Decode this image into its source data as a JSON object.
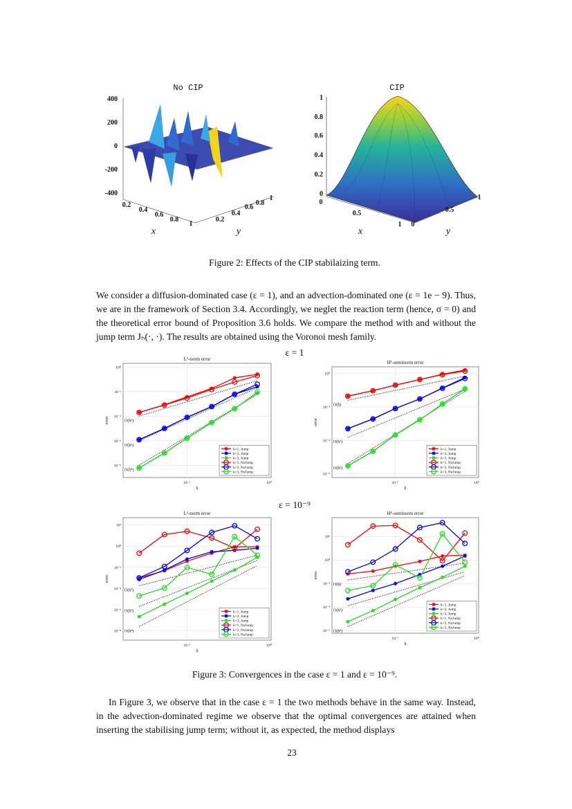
{
  "figure_2": {
    "panels": [
      {
        "title": "No CIP",
        "z_ticks": [
          400,
          200,
          0,
          -200,
          -400
        ],
        "x_ticks": [
          0.2,
          0.4,
          0.6,
          0.8,
          1
        ],
        "y_ticks": [
          0.2,
          0.4,
          0.6,
          0.8,
          1
        ],
        "x_label": "x",
        "y_label": "y"
      },
      {
        "title": "CIP",
        "z_ticks": [
          1,
          0.8,
          0.6,
          0.4,
          0.2,
          0
        ],
        "x_ticks": [
          0,
          0.5,
          1
        ],
        "y_ticks": [
          0,
          0.5,
          1
        ],
        "x_label": "x",
        "y_label": "y"
      }
    ],
    "caption": "Figure 2: Effects of the CIP stabilaizing term."
  },
  "paragraph_1": "We consider a diffusion-dominated case (ε = 1), and an advection-dominated one (ε = 1e − 9). Thus, we are in the framework of Section 3.4. Accordingly, we neglet the reaction term (hence, σ = 0) and the theoretical error bound of Proposition 3.6 holds. We compare the method with and without the jump term Jₕ(·, ·). The results are obtained using the Voronoi mesh family.",
  "figure_3": {
    "headers": [
      "ε = 1",
      "ε = 10⁻⁹"
    ],
    "caption": "Figure 3: Convergences in the case ε = 1 and ε = 10⁻⁹."
  },
  "chart_data": [
    {
      "type": "line",
      "title": "L²-norm error",
      "xlabel": "h",
      "ylabel": "error",
      "log_x": true,
      "log_y": true,
      "grid": true,
      "legend": "lower right",
      "x": [
        0.026,
        0.053,
        0.1,
        0.2,
        0.38,
        0.72
      ],
      "xlim": [
        0.0166,
        1.06
      ],
      "ylim": [
        1e-09,
        2
      ],
      "xticks": [
        {
          "value": 0.1,
          "label": "10⁻¹"
        },
        {
          "value": 1,
          "label": "10⁰"
        }
      ],
      "yticks": [
        {
          "value": 1,
          "label": "10⁰"
        },
        {
          "value": 0.01,
          "label": "10⁻²"
        },
        {
          "value": 0.0001,
          "label": "10⁻⁴"
        },
        {
          "value": 1e-06,
          "label": "10⁻⁶"
        },
        {
          "value": 1e-08,
          "label": "10⁻⁸"
        }
      ],
      "series": [
        {
          "name": "k=1, Jump",
          "color": "#ff0000",
          "marker": "*",
          "values": [
            0.0002,
            0.00085,
            0.0037,
            0.018,
            0.13,
            0.26
          ]
        },
        {
          "name": "k=2, Jump",
          "color": "#0000ff",
          "marker": "*",
          "values": [
            1.2e-06,
            1e-05,
            8e-05,
            0.0006,
            0.006,
            0.025
          ]
        },
        {
          "name": "k=3, Jump",
          "color": "#22dd22",
          "marker": "*",
          "values": [
            6e-09,
            1e-07,
            1.6e-06,
            3e-05,
            0.0004,
            0.008
          ]
        },
        {
          "name": "k=1, NoJump",
          "color": "#ff0000",
          "marker": "o",
          "values": [
            0.0002,
            0.0008,
            0.003,
            0.015,
            0.06,
            0.2
          ]
        },
        {
          "name": "k=2, NoJump",
          "color": "#0000ff",
          "marker": "o",
          "values": [
            1.2e-06,
            1e-05,
            8e-05,
            0.0006,
            0.006,
            0.04
          ]
        },
        {
          "name": "k=3, NoJump",
          "color": "#22dd22",
          "marker": "o",
          "values": [
            6e-09,
            1e-07,
            1.6e-06,
            3e-05,
            0.0004,
            0.009
          ]
        }
      ],
      "reference_lines": [
        {
          "label": "O(h²)",
          "x": [
            0.026,
            0.72
          ],
          "values": [
            0.0001,
            0.077
          ]
        },
        {
          "label": "O(h³)",
          "x": [
            0.026,
            0.72
          ],
          "values": [
            1e-06,
            0.021
          ]
        },
        {
          "label": "O(h⁴)",
          "x": [
            0.026,
            0.72
          ],
          "values": [
            1e-08,
            0.0059
          ]
        }
      ]
    },
    {
      "type": "line",
      "title": "H¹-seminorm error",
      "xlabel": "h",
      "ylabel": "error",
      "log_x": true,
      "log_y": true,
      "grid": true,
      "legend": "lower right",
      "x": [
        0.026,
        0.053,
        0.1,
        0.2,
        0.38,
        0.72
      ],
      "xlim": [
        0.0166,
        1.06
      ],
      "ylim": [
        6e-07,
        2.5
      ],
      "xticks": [
        {
          "value": 0.1,
          "label": "10⁻¹"
        },
        {
          "value": 1,
          "label": "10⁰"
        }
      ],
      "yticks": [
        {
          "value": 1,
          "label": "10⁰"
        },
        {
          "value": 0.01,
          "label": "10⁻²"
        },
        {
          "value": 0.0001,
          "label": "10⁻⁴"
        },
        {
          "value": 1e-06,
          "label": "10⁻⁶"
        }
      ],
      "series": [
        {
          "name": "k=1, Jump",
          "color": "#ff0000",
          "marker": "*",
          "values": [
            0.044,
            0.093,
            0.2,
            0.43,
            0.9,
            1.6
          ]
        },
        {
          "name": "k=2, Jump",
          "color": "#0000ff",
          "marker": "*",
          "values": [
            0.0005,
            0.0019,
            0.008,
            0.03,
            0.135,
            0.56
          ]
        },
        {
          "name": "k=3, Jump",
          "color": "#22dd22",
          "marker": "*",
          "values": [
            3e-06,
            2.2e-05,
            0.00021,
            0.0017,
            0.015,
            0.12
          ]
        },
        {
          "name": "k=1, NoJump",
          "color": "#ff0000",
          "marker": "o",
          "values": [
            0.044,
            0.093,
            0.2,
            0.43,
            0.85,
            1.4
          ]
        },
        {
          "name": "k=2, NoJump",
          "color": "#0000ff",
          "marker": "o",
          "values": [
            0.0005,
            0.0019,
            0.008,
            0.03,
            0.13,
            0.5
          ]
        },
        {
          "name": "k=3, NoJump",
          "color": "#22dd22",
          "marker": "o",
          "values": [
            3e-06,
            2.2e-05,
            0.00021,
            0.0017,
            0.015,
            0.12
          ]
        }
      ],
      "reference_lines": [
        {
          "label": "O(h)",
          "x": [
            0.026,
            0.72
          ],
          "values": [
            0.025,
            0.69
          ]
        },
        {
          "label": "O(h²)",
          "x": [
            0.026,
            0.72
          ],
          "values": [
            0.00015,
            0.115
          ]
        },
        {
          "label": "O(h³)",
          "x": [
            0.026,
            0.72
          ],
          "values": [
            4e-06,
            0.085
          ]
        }
      ]
    },
    {
      "type": "line",
      "title": "L²-norm error",
      "xlabel": "h",
      "ylabel": "error",
      "log_x": true,
      "log_y": true,
      "grid": true,
      "legend": "lower right",
      "x": [
        0.026,
        0.053,
        0.1,
        0.2,
        0.38,
        0.72
      ],
      "xlim": [
        0.0166,
        1.06
      ],
      "ylim": [
        1.3e-09,
        500
      ],
      "xticks": [
        {
          "value": 0.1,
          "label": "10⁻¹"
        },
        {
          "value": 1,
          "label": "10⁰"
        }
      ],
      "yticks": [
        {
          "value": 100,
          "label": "10²"
        },
        {
          "value": 1,
          "label": "10⁰"
        },
        {
          "value": 0.01,
          "label": "10⁻²"
        },
        {
          "value": 0.0001,
          "label": "10⁻⁴"
        },
        {
          "value": 1e-06,
          "label": "10⁻⁶"
        },
        {
          "value": 1e-08,
          "label": "10⁻⁸"
        }
      ],
      "series": [
        {
          "name": "k=1, Jump",
          "color": "#ff0000",
          "marker": "*",
          "values": [
            0.001,
            0.0048,
            0.038,
            0.22,
            0.87,
            0.87
          ]
        },
        {
          "name": "k=2, Jump",
          "color": "#0000ff",
          "marker": "*",
          "values": [
            0.0007,
            0.0055,
            0.06,
            0.3,
            0.4,
            0.65
          ]
        },
        {
          "name": "k=3, Jump",
          "color": "#22dd22",
          "marker": "*",
          "values": [
            2.2e-07,
            3.3e-06,
            3.5e-05,
            0.0005,
            0.0055,
            0.09
          ]
        },
        {
          "name": "k=1, NoJump",
          "color": "#ff0000",
          "marker": "o",
          "values": [
            0.22,
            12.6,
            26,
            6,
            0.65,
            40
          ]
        },
        {
          "name": "k=2, NoJump",
          "color": "#0000ff",
          "marker": "o",
          "values": [
            0.001,
            0.012,
            0.4,
            20,
            86,
            5
          ]
        },
        {
          "name": "k=3, NoJump",
          "color": "#22dd22",
          "marker": "o",
          "values": [
            2e-05,
            0.00011,
            0.01,
            0.0022,
            8,
            0.14
          ]
        }
      ],
      "reference_lines": [
        {
          "label": "O(h²)",
          "x": [
            0.026,
            0.72
          ],
          "values": [
            0.00018,
            0.14
          ]
        },
        {
          "label": "O(h³)",
          "x": [
            0.026,
            0.72
          ],
          "values": [
            2e-06,
            0.044
          ]
        },
        {
          "label": "O(h⁴)",
          "x": [
            0.026,
            0.72
          ],
          "values": [
            2.5e-08,
            0.015
          ]
        }
      ]
    },
    {
      "type": "line",
      "title": "H¹-seminorm error",
      "xlabel": "h",
      "ylabel": "error",
      "log_x": true,
      "log_y": true,
      "grid": true,
      "legend": "lower right",
      "x": [
        0.026,
        0.053,
        0.1,
        0.2,
        0.38,
        0.72
      ],
      "xlim": [
        0.0166,
        1.06
      ],
      "ylim": [
        6e-07,
        4000
      ],
      "xticks": [
        {
          "value": 0.1,
          "label": "10⁻¹"
        },
        {
          "value": 1,
          "label": "10⁰"
        }
      ],
      "yticks": [
        {
          "value": 100,
          "label": "10²"
        },
        {
          "value": 1,
          "label": "10⁰"
        },
        {
          "value": 0.01,
          "label": "10⁻²"
        },
        {
          "value": 0.0001,
          "label": "10⁻⁴"
        },
        {
          "value": 1e-06,
          "label": "10⁻⁶"
        }
      ],
      "series": [
        {
          "name": "k=1, Jump",
          "color": "#ff0000",
          "marker": "*",
          "values": [
            0.066,
            0.115,
            0.3,
            0.76,
            2.2,
            2.6
          ]
        },
        {
          "name": "k=2, Jump",
          "color": "#0000ff",
          "marker": "*",
          "values": [
            0.0005,
            0.0026,
            0.01,
            0.058,
            0.3,
            2.2
          ]
        },
        {
          "name": "k=3, Jump",
          "color": "#22dd22",
          "marker": "*",
          "values": [
            5.8e-06,
            5e-05,
            0.00045,
            0.0045,
            0.034,
            0.3
          ]
        },
        {
          "name": "k=1, NoJump",
          "color": "#ff0000",
          "marker": "o",
          "values": [
            20,
            760,
            870,
            51,
            0.87,
            195
          ]
        },
        {
          "name": "k=2, NoJump",
          "color": "#0000ff",
          "marker": "o",
          "values": [
            0.1,
            0.66,
            8.7,
            580,
            1500,
            26
          ]
        },
        {
          "name": "k=3, NoJump",
          "color": "#22dd22",
          "marker": "o",
          "values": [
            0.0026,
            0.0066,
            0.39,
            0.03,
            170,
            0.66
          ]
        }
      ],
      "reference_lines": [
        {
          "label": "O(h)",
          "x": [
            0.026,
            0.72
          ],
          "values": [
            0.02,
            0.55
          ]
        },
        {
          "label": "O(h²)",
          "x": [
            0.026,
            0.72
          ],
          "values": [
            0.00013,
            0.1
          ]
        },
        {
          "label": "O(h³)",
          "x": [
            0.026,
            0.72
          ],
          "values": [
            2.2e-06,
            0.047
          ]
        }
      ]
    }
  ],
  "paragraph_2": "In Figure 3, we observe that in the case ε = 1 the two methods behave in the same way. Instead, in the advection-dominated regime we observe that the optimal convergences are at­tained when inserting the stabilising jump term; without it, as expected, the method displays",
  "page_number": "23"
}
